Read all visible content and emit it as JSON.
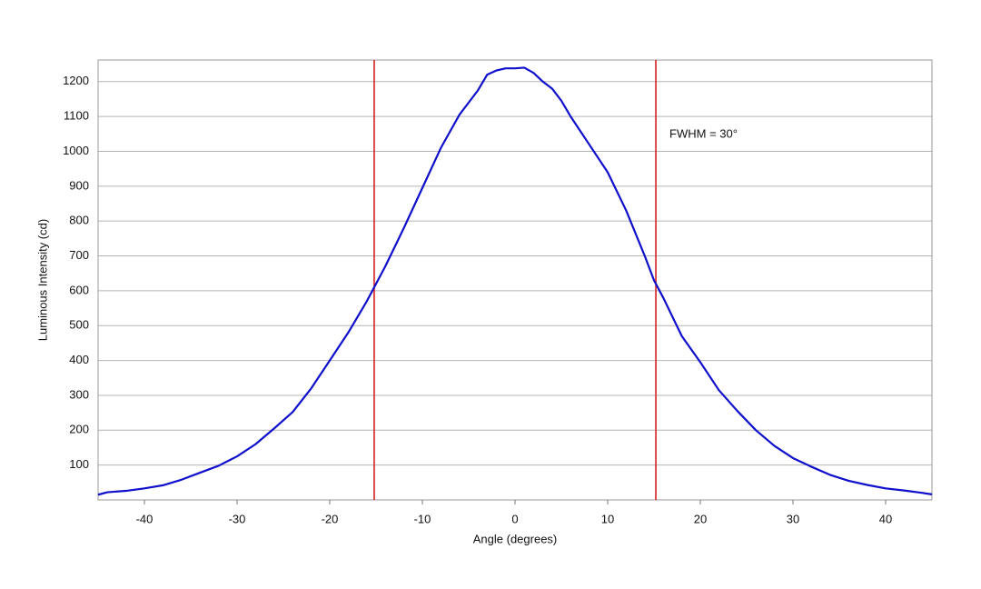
{
  "chart_data": {
    "type": "line",
    "xlabel": "Angle (degrees)",
    "ylabel": "Luminous Intensity (cd)",
    "annotation": "FWHM = 30°",
    "x": [
      -45,
      -44,
      -42,
      -40,
      -38,
      -36,
      -34,
      -32,
      -30,
      -28,
      -26,
      -24,
      -22,
      -20,
      -18,
      -16,
      -15,
      -14,
      -12,
      -10,
      -8,
      -6,
      -4,
      -3,
      -2,
      -1,
      0,
      1,
      2,
      3,
      4,
      5,
      6,
      8,
      10,
      12,
      14,
      15,
      16,
      18,
      20,
      22,
      24,
      26,
      28,
      30,
      32,
      34,
      36,
      38,
      40,
      42,
      44,
      45
    ],
    "series": [
      {
        "color": "#1010cc",
        "values": [
          15,
          22,
          26,
          33,
          42,
          58,
          78,
          98,
          125,
          160,
          205,
          252,
          320,
          400,
          480,
          570,
          620,
          670,
          780,
          895,
          1010,
          1105,
          1175,
          1220,
          1232,
          1238,
          1238,
          1240,
          1225,
          1200,
          1180,
          1145,
          1100,
          1020,
          940,
          830,
          700,
          630,
          580,
          470,
          395,
          315,
          255,
          200,
          155,
          120,
          95,
          72,
          55,
          43,
          33,
          27,
          20,
          16
        ]
      }
    ],
    "vlines": [
      -15.2,
      15.2
    ],
    "vline_color": "#d42020",
    "xlim": [
      -45,
      45
    ],
    "ylim": [
      0,
      1262
    ],
    "xticks": [
      -40,
      -30,
      -20,
      -10,
      0,
      10,
      20,
      30,
      40
    ],
    "yticks": [
      100,
      200,
      300,
      400,
      500,
      600,
      700,
      800,
      900,
      1000,
      1100,
      1200
    ],
    "grid": true
  }
}
